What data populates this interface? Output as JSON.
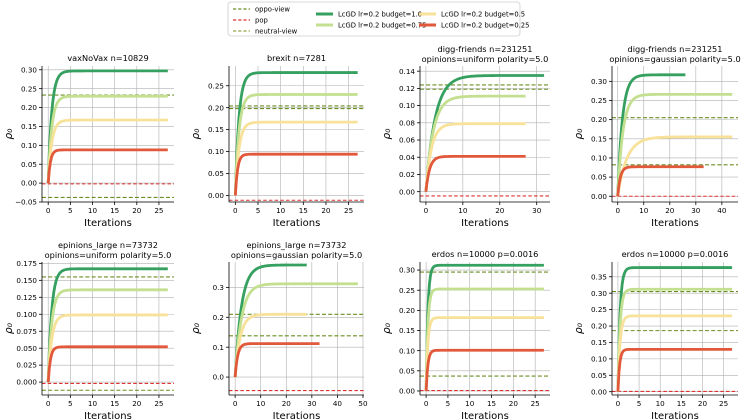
{
  "chart_data": {
    "type": "line",
    "legend": {
      "placement": "top-center",
      "entries": [
        {
          "label": "oppo-view",
          "style": "dashed",
          "color": "#6b8e23"
        },
        {
          "label": "pop",
          "style": "dashed",
          "color": "#dc3232"
        },
        {
          "label": "neutral-view",
          "style": "dashed",
          "color": "#9aa34a"
        },
        {
          "label": "LcGD  lr=0.2  budget=1.0",
          "style": "solid",
          "color": "#35a060"
        },
        {
          "label": "LcGD  lr=0.2  budget=0.75",
          "style": "solid",
          "color": "#c3e090"
        },
        {
          "label": "LcGD  lr=0.2  budget=0.5",
          "style": "solid",
          "color": "#f8e29a"
        },
        {
          "label": "LcGD  lr=0.2  budget=0.25",
          "style": "solid",
          "color": "#e2583a"
        }
      ]
    },
    "panels": [
      {
        "title": [
          "vaxNoVax   n=10829"
        ],
        "xlabel": "Iterations",
        "ylabel": "ρ₀",
        "xlim": [
          -1.4,
          28.4
        ],
        "ylim": [
          -0.05,
          0.31
        ],
        "xticks": [
          0,
          5,
          10,
          15,
          20,
          25
        ],
        "yticks": [
          -0.05,
          0.0,
          0.05,
          0.1,
          0.15,
          0.2,
          0.25,
          0.3
        ],
        "ytick_labels": [
          "−0.05",
          "0.00",
          "0.05",
          "0.10",
          "0.15",
          "0.20",
          "0.25",
          "0.30"
        ],
        "reference_lines": [
          {
            "name": "oppo-view",
            "y": 0.233,
            "color": "#6b8e23"
          },
          {
            "name": "neutral-view",
            "y": -0.038,
            "color": "#6b8e23"
          },
          {
            "name": "pop",
            "y": -0.002,
            "color": "#dc3232"
          }
        ],
        "series": [
          {
            "name": "budget=1.0",
            "x_end": 27,
            "final": 0.297,
            "tau": 0.8,
            "color": "#35a060"
          },
          {
            "name": "budget=0.75",
            "x_end": 27,
            "final": 0.23,
            "tau": 0.8,
            "color": "#c3e090"
          },
          {
            "name": "budget=0.5",
            "x_end": 27,
            "final": 0.167,
            "tau": 0.8,
            "color": "#f8e29a"
          },
          {
            "name": "budget=0.25",
            "x_end": 27,
            "final": 0.088,
            "tau": 0.5,
            "color": "#e2583a"
          }
        ]
      },
      {
        "title": [
          "brexit   n=7281"
        ],
        "xlabel": "Iterations",
        "ylabel": "ρ₀",
        "xlim": [
          -1.4,
          28.4
        ],
        "ylim": [
          -0.015,
          0.295
        ],
        "xticks": [
          0,
          5,
          10,
          15,
          20,
          25
        ],
        "yticks": [
          0.0,
          0.05,
          0.1,
          0.15,
          0.2,
          0.25
        ],
        "ytick_labels": [
          "0.00",
          "0.05",
          "0.10",
          "0.15",
          "0.20",
          "0.25"
        ],
        "reference_lines": [
          {
            "name": "oppo-view",
            "y": 0.204,
            "color": "#6b8e23"
          },
          {
            "name": "neutral-view",
            "y": 0.198,
            "color": "#6b8e23"
          },
          {
            "name": "pop",
            "y": -0.011,
            "color": "#dc3232"
          }
        ],
        "series": [
          {
            "name": "budget=1.0",
            "x_end": 27,
            "final": 0.28,
            "tau": 0.8,
            "color": "#35a060"
          },
          {
            "name": "budget=0.75",
            "x_end": 27,
            "final": 0.23,
            "tau": 0.8,
            "color": "#c3e090"
          },
          {
            "name": "budget=0.5",
            "x_end": 27,
            "final": 0.167,
            "tau": 0.8,
            "color": "#f8e29a"
          },
          {
            "name": "budget=0.25",
            "x_end": 27,
            "final": 0.094,
            "tau": 0.5,
            "color": "#e2583a"
          }
        ]
      },
      {
        "title": [
          "digg-friends   n=231251",
          "opinions=uniform polarity=5.0"
        ],
        "xlabel": "Iterations",
        "ylabel": "ρ₀",
        "xlim": [
          -1.6,
          33.6
        ],
        "ylim": [
          -0.012,
          0.146
        ],
        "xticks": [
          0,
          10,
          20,
          30
        ],
        "yticks": [
          0.0,
          0.02,
          0.04,
          0.06,
          0.08,
          0.1,
          0.12,
          0.14
        ],
        "ytick_labels": [
          "0.00",
          "0.02",
          "0.04",
          "0.06",
          "0.08",
          "0.10",
          "0.12",
          "0.14"
        ],
        "reference_lines": [
          {
            "name": "oppo-view",
            "y": 0.124,
            "color": "#6b8e23"
          },
          {
            "name": "neutral-view",
            "y": 0.119,
            "color": "#6b8e23"
          },
          {
            "name": "pop",
            "y": -0.005,
            "color": "#dc3232"
          }
        ],
        "series": [
          {
            "name": "budget=1.0",
            "x_end": 32,
            "final": 0.135,
            "tau": 2.5,
            "color": "#35a060"
          },
          {
            "name": "budget=0.75",
            "x_end": 27,
            "final": 0.111,
            "tau": 2.0,
            "color": "#c3e090"
          },
          {
            "name": "budget=0.5",
            "x_end": 27,
            "final": 0.079,
            "tau": 1.5,
            "color": "#f8e29a"
          },
          {
            "name": "budget=0.25",
            "x_end": 27,
            "final": 0.041,
            "tau": 1.0,
            "color": "#e2583a"
          }
        ]
      },
      {
        "title": [
          "digg-friends   n=231251",
          "opinions=gaussian polarity=5.0"
        ],
        "xlabel": "Iterations",
        "ylabel": "ρ₀",
        "xlim": [
          -2.2,
          46.2
        ],
        "ylim": [
          -0.015,
          0.34
        ],
        "xticks": [
          0,
          10,
          20,
          30,
          40
        ],
        "yticks": [
          0.0,
          0.05,
          0.1,
          0.15,
          0.2,
          0.25,
          0.3
        ],
        "ytick_labels": [
          "0.00",
          "0.05",
          "0.10",
          "0.15",
          "0.20",
          "0.25",
          "0.30"
        ],
        "reference_lines": [
          {
            "name": "oppo-view",
            "y": 0.082,
            "color": "#6b8e23"
          },
          {
            "name": "neutral-view",
            "y": 0.205,
            "color": "#6b8e23"
          },
          {
            "name": "pop",
            "y": 0.0,
            "color": "#dc3232"
          }
        ],
        "series": [
          {
            "name": "budget=1.0",
            "x_end": 26,
            "final": 0.317,
            "tau": 1.8,
            "color": "#35a060"
          },
          {
            "name": "budget=0.75",
            "x_end": 44,
            "final": 0.266,
            "tau": 2.0,
            "color": "#c3e090"
          },
          {
            "name": "budget=0.5",
            "x_end": 44,
            "final": 0.155,
            "tau": 3.5,
            "color": "#f8e29a"
          },
          {
            "name": "budget=0.25",
            "x_end": 33,
            "final": 0.077,
            "tau": 1.0,
            "color": "#e2583a"
          }
        ]
      },
      {
        "title": [
          "epinions_large   n=73732",
          "opinions=uniform polarity=5.0"
        ],
        "xlabel": "Iterations",
        "ylabel": "ρ₀",
        "xlim": [
          -1.4,
          28.4
        ],
        "ylim": [
          -0.019,
          0.177
        ],
        "xticks": [
          0,
          5,
          10,
          15,
          20,
          25
        ],
        "yticks": [
          0.0,
          0.025,
          0.05,
          0.075,
          0.1,
          0.125,
          0.15,
          0.175
        ],
        "ytick_labels": [
          "0.000",
          "0.025",
          "0.050",
          "0.075",
          "0.100",
          "0.125",
          "0.150",
          "0.175"
        ],
        "reference_lines": [
          {
            "name": "oppo-view",
            "y": 0.155,
            "color": "#6b8e23"
          },
          {
            "name": "neutral-view",
            "y": -0.012,
            "color": "#6b8e23"
          },
          {
            "name": "pop",
            "y": -0.002,
            "color": "#dc3232"
          }
        ],
        "series": [
          {
            "name": "budget=1.0",
            "x_end": 27,
            "final": 0.167,
            "tau": 0.8,
            "color": "#35a060"
          },
          {
            "name": "budget=0.75",
            "x_end": 27,
            "final": 0.136,
            "tau": 0.8,
            "color": "#c3e090"
          },
          {
            "name": "budget=0.5",
            "x_end": 27,
            "final": 0.099,
            "tau": 0.8,
            "color": "#f8e29a"
          },
          {
            "name": "budget=0.25",
            "x_end": 27,
            "final": 0.052,
            "tau": 0.5,
            "color": "#e2583a"
          }
        ]
      },
      {
        "title": [
          "epinions_large   n=73732",
          "opinions=gaussian polarity=5.0"
        ],
        "xlabel": "Iterations",
        "ylabel": "ρ₀",
        "xlim": [
          -2.4,
          50.4
        ],
        "ylim": [
          -0.06,
          0.385
        ],
        "xticks": [
          0,
          10,
          20,
          30,
          40,
          50
        ],
        "yticks": [
          0.0,
          0.1,
          0.2,
          0.3
        ],
        "ytick_labels": [
          "0.0",
          "0.1",
          "0.2",
          "0.3"
        ],
        "reference_lines": [
          {
            "name": "oppo-view",
            "y": 0.21,
            "color": "#6b8e23"
          },
          {
            "name": "neutral-view",
            "y": 0.138,
            "color": "#6b8e23"
          },
          {
            "name": "pop",
            "y": -0.045,
            "color": "#dc3232"
          }
        ],
        "series": [
          {
            "name": "budget=1.0",
            "x_end": 28,
            "final": 0.375,
            "tau": 2.5,
            "color": "#35a060"
          },
          {
            "name": "budget=0.75",
            "x_end": 48,
            "final": 0.312,
            "tau": 2.5,
            "color": "#c3e090"
          },
          {
            "name": "budget=0.5",
            "x_end": 28,
            "final": 0.21,
            "tau": 2.0,
            "color": "#f8e29a"
          },
          {
            "name": "budget=0.25",
            "x_end": 33,
            "final": 0.112,
            "tau": 1.0,
            "color": "#e2583a"
          }
        ]
      },
      {
        "title": [
          "erdos n=10000 p=0.0016"
        ],
        "xlabel": "Iterations",
        "ylabel": "ρ₀",
        "xlim": [
          -1.4,
          28.4
        ],
        "ylim": [
          -0.01,
          0.32
        ],
        "xticks": [
          0,
          5,
          10,
          15,
          20,
          25
        ],
        "yticks": [
          0.0,
          0.05,
          0.1,
          0.15,
          0.2,
          0.25,
          0.3
        ],
        "ytick_labels": [
          "0.00",
          "0.05",
          "0.10",
          "0.15",
          "0.20",
          "0.25",
          "0.30"
        ],
        "reference_lines": [
          {
            "name": "oppo-view",
            "y": 0.295,
            "color": "#6b8e23"
          },
          {
            "name": "neutral-view",
            "y": 0.037,
            "color": "#6b8e23"
          },
          {
            "name": "pop",
            "y": 0.001,
            "color": "#dc3232"
          }
        ],
        "series": [
          {
            "name": "budget=1.0",
            "x_end": 27,
            "final": 0.312,
            "tau": 0.4,
            "color": "#35a060"
          },
          {
            "name": "budget=0.75",
            "x_end": 27,
            "final": 0.253,
            "tau": 0.4,
            "color": "#c3e090"
          },
          {
            "name": "budget=0.5",
            "x_end": 27,
            "final": 0.182,
            "tau": 0.4,
            "color": "#f8e29a"
          },
          {
            "name": "budget=0.25",
            "x_end": 27,
            "final": 0.101,
            "tau": 0.4,
            "color": "#e2583a"
          }
        ]
      },
      {
        "title": [
          "erdos n=10000 p=0.0016"
        ],
        "xlabel": "Iterations",
        "ylabel": "ρ₀",
        "xlim": [
          -1.4,
          28.4
        ],
        "ylim": [
          -0.01,
          0.395
        ],
        "xticks": [
          0,
          5,
          10,
          15,
          20,
          25
        ],
        "yticks": [
          0.0,
          0.05,
          0.1,
          0.15,
          0.2,
          0.25,
          0.3,
          0.35
        ],
        "ytick_labels": [
          "0.00",
          "0.05",
          "0.10",
          "0.15",
          "0.20",
          "0.25",
          "0.30",
          "0.35"
        ],
        "reference_lines": [
          {
            "name": "oppo-view",
            "y": 0.305,
            "color": "#6b8e23"
          },
          {
            "name": "neutral-view",
            "y": 0.186,
            "color": "#6b8e23"
          },
          {
            "name": "pop",
            "y": 0.001,
            "color": "#dc3232"
          }
        ],
        "series": [
          {
            "name": "budget=1.0",
            "x_end": 27,
            "final": 0.378,
            "tau": 0.5,
            "color": "#35a060"
          },
          {
            "name": "budget=0.75",
            "x_end": 27,
            "final": 0.312,
            "tau": 0.5,
            "color": "#c3e090"
          },
          {
            "name": "budget=0.5",
            "x_end": 27,
            "final": 0.231,
            "tau": 0.5,
            "color": "#f8e29a"
          },
          {
            "name": "budget=0.25",
            "x_end": 27,
            "final": 0.129,
            "tau": 0.4,
            "color": "#e2583a"
          }
        ]
      }
    ]
  }
}
